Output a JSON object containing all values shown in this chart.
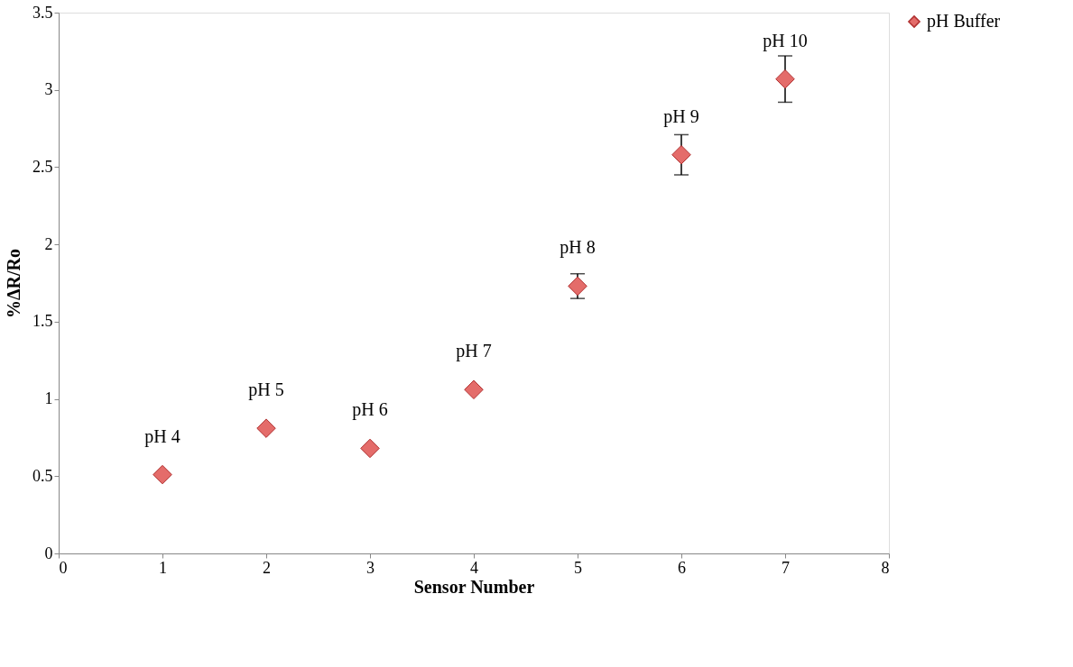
{
  "chart_data": {
    "type": "scatter",
    "xlabel": "Sensor Number",
    "ylabel": "%ΔR/Ro",
    "x": [
      1,
      2,
      3,
      4,
      5,
      6,
      7
    ],
    "series": [
      {
        "name": "pH Buffer",
        "color": "#e46c6a",
        "values": [
          0.51,
          0.81,
          0.68,
          1.06,
          1.73,
          2.58,
          3.07
        ],
        "errors": [
          null,
          null,
          null,
          null,
          0.08,
          0.13,
          0.15
        ]
      }
    ],
    "xlim": [
      0,
      8
    ],
    "xticks": [
      0,
      1,
      2,
      3,
      4,
      5,
      6,
      7,
      8
    ],
    "ylim": [
      0,
      3.5
    ],
    "yticks": [
      0,
      0.5,
      1,
      1.5,
      2,
      2.5,
      3,
      3.5
    ],
    "marker": "diamond",
    "grid": false,
    "legend": "right",
    "annotations": [
      {
        "text": "pH 4",
        "x": 1,
        "y": 0.51
      },
      {
        "text": "pH 5",
        "x": 2,
        "y": 0.81
      },
      {
        "text": "pH 6",
        "x": 3,
        "y": 0.68
      },
      {
        "text": "pH 7",
        "x": 4,
        "y": 1.06
      },
      {
        "text": "pH 8",
        "x": 5,
        "y": 1.73
      },
      {
        "text": "pH 9",
        "x": 6,
        "y": 2.58
      },
      {
        "text": "pH 10",
        "x": 7,
        "y": 3.07
      }
    ]
  }
}
